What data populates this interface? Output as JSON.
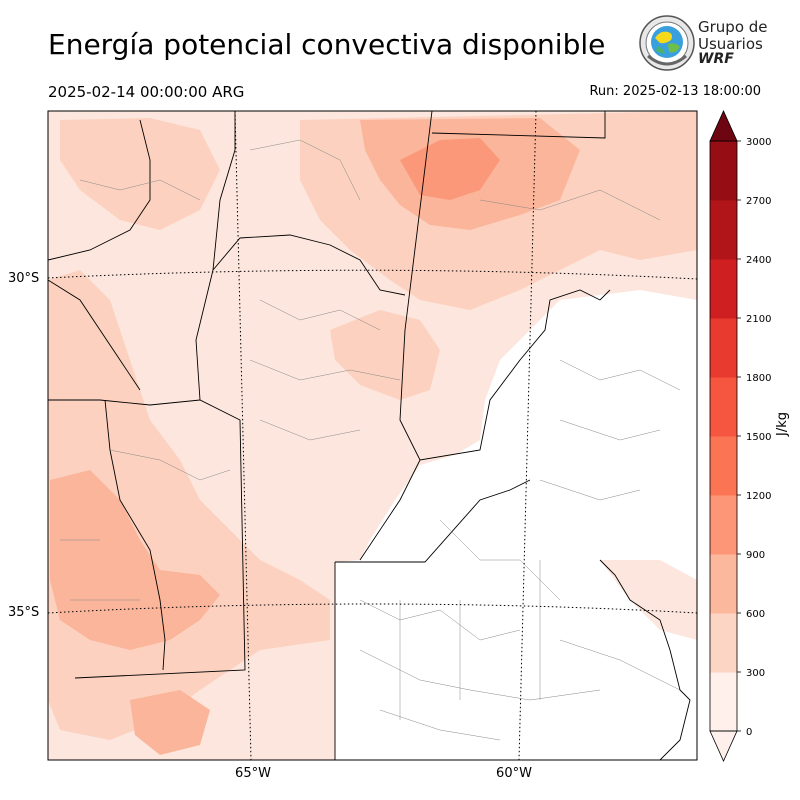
{
  "title": "Energía potencial convectiva disponible",
  "valid_time": "2025-02-14 00:00:00 ARG",
  "run_time": "Run: 2025-02-13 18:00:00",
  "logo": {
    "line1": "Grupo de",
    "line2": "Usuarios",
    "line3": "WRF",
    "icon": "globe-seal-icon"
  },
  "axes": {
    "lat_labels": [
      "30°S",
      "35°S"
    ],
    "lon_labels": [
      "65°W",
      "60°W"
    ]
  },
  "colorbar": {
    "label": "J/kg",
    "ticks": [
      "0",
      "300",
      "600",
      "900",
      "1200",
      "1500",
      "1800",
      "2100",
      "2400",
      "2700",
      "3000"
    ],
    "colors": [
      "#fff0eb",
      "#fdd5c4",
      "#fcb89c",
      "#fc9676",
      "#fb7555",
      "#f65540",
      "#e83a2f",
      "#d01f21",
      "#b21519",
      "#960d13",
      "#6e0611"
    ],
    "extend": "max"
  },
  "map_colors": {
    "cape_0_300": "#fde6dd",
    "cape_300_600": "#fcd1bf",
    "cape_600_900": "#fbb59a",
    "cape_900_1200": "#fa9879",
    "border": "#000000",
    "gridline": "#000000"
  }
}
